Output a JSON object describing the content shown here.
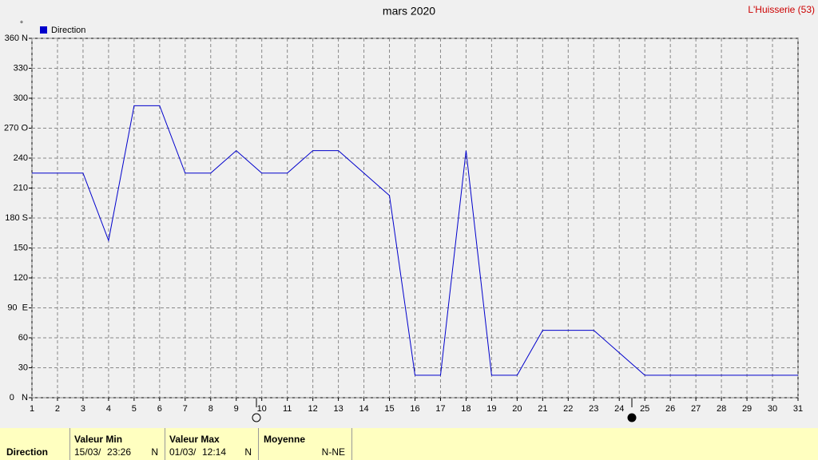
{
  "chart_data": {
    "type": "line",
    "title": "mars 2020",
    "station": "L'Huisserie (53)",
    "y_unit": "°",
    "x": [
      1,
      2,
      3,
      4,
      5,
      6,
      7,
      8,
      9,
      10,
      11,
      12,
      13,
      14,
      15,
      16,
      17,
      18,
      19,
      20,
      21,
      22,
      23,
      24,
      25,
      26,
      27,
      28,
      29,
      30,
      31
    ],
    "xlim": [
      1,
      31
    ],
    "xticks": [
      1,
      2,
      3,
      4,
      5,
      6,
      7,
      8,
      9,
      10,
      11,
      12,
      13,
      14,
      15,
      16,
      17,
      18,
      19,
      20,
      21,
      22,
      23,
      24,
      25,
      26,
      27,
      28,
      29,
      30,
      31
    ],
    "ylim": [
      0,
      360
    ],
    "yticks": [
      {
        "value": 0,
        "label": "0   N"
      },
      30,
      60,
      {
        "value": 90,
        "label": "90  E"
      },
      120,
      150,
      {
        "value": 180,
        "label": "180 S"
      },
      210,
      240,
      {
        "value": 270,
        "label": "270 O"
      },
      300,
      330,
      {
        "value": 360,
        "label": "360 N"
      }
    ],
    "grid": true,
    "series": [
      {
        "name": "Direction",
        "color": "#0000cc",
        "values": [
          225,
          225,
          225,
          157.5,
          292.5,
          292.5,
          225,
          225,
          247.5,
          225,
          225,
          247.5,
          247.5,
          225,
          202.5,
          22.5,
          22.5,
          247.5,
          22.5,
          22.5,
          67.5,
          67.5,
          67.5,
          45,
          22.5,
          22.5,
          22.5,
          22.5,
          22.5,
          22.5,
          22.5
        ]
      }
    ]
  },
  "summary": {
    "row_label": "Direction",
    "min": {
      "header": "Valeur Min",
      "date": "15/03/",
      "time": "23:26",
      "value": "N"
    },
    "max": {
      "header": "Valeur Max",
      "date": "01/03/",
      "time": "12:14",
      "value": "N"
    },
    "mean": {
      "header": "Moyenne",
      "value": "N-NE"
    }
  }
}
